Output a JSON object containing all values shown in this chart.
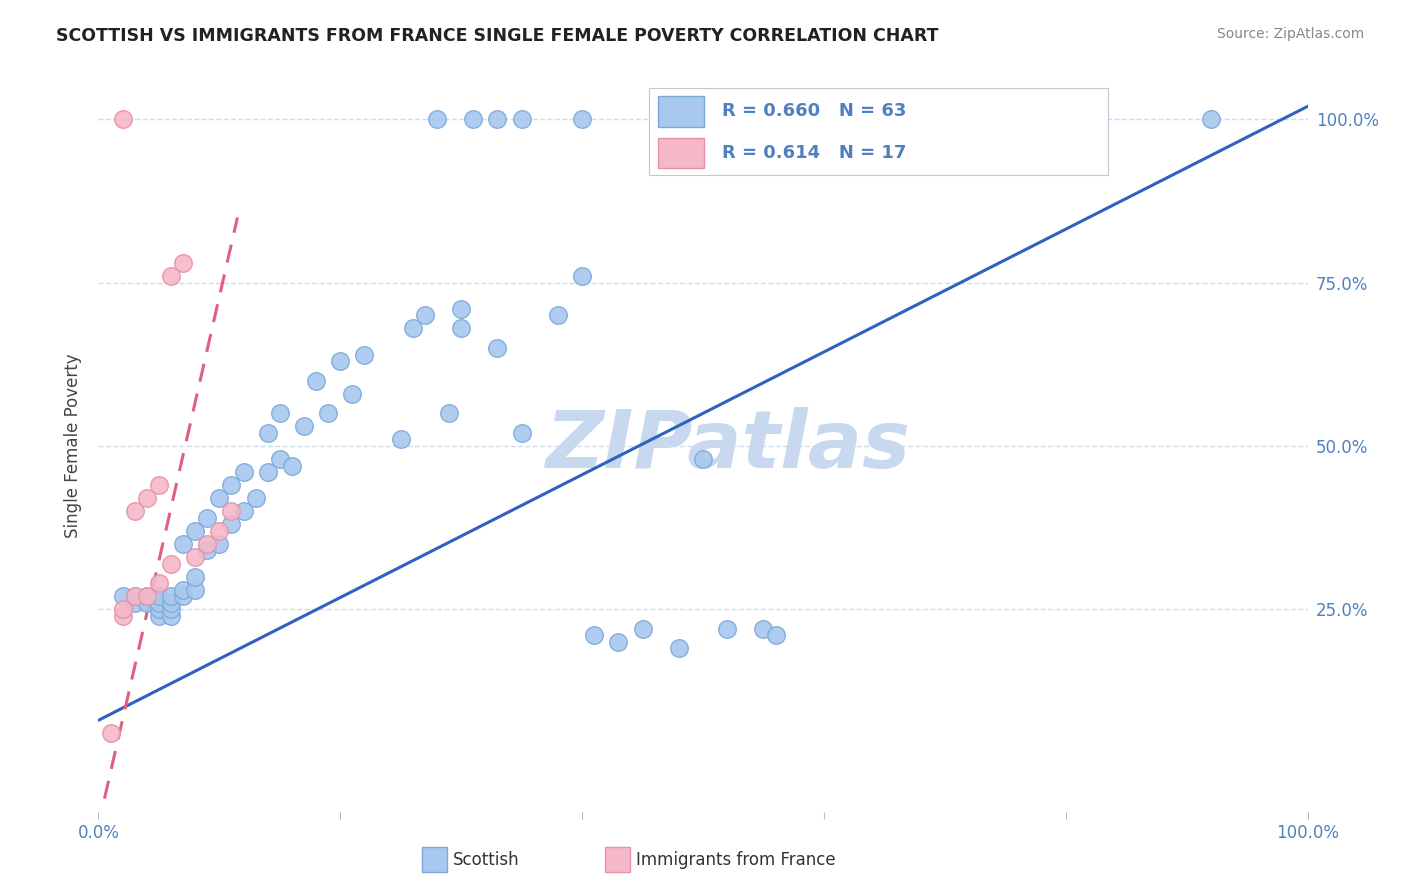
{
  "title": "SCOTTISH VS IMMIGRANTS FROM FRANCE SINGLE FEMALE POVERTY CORRELATION CHART",
  "source": "Source: ZipAtlas.com",
  "ylabel": "Single Female Poverty",
  "blue_color": "#A8C8F0",
  "blue_edge_color": "#7AAAD8",
  "pink_color": "#F4B8C8",
  "pink_edge_color": "#E890A8",
  "blue_line_color": "#3060C0",
  "pink_line_color": "#E06080",
  "grid_color": "#C8D8E8",
  "watermark_color": "#C8D8EE",
  "tick_color": "#5080C0",
  "R_blue": 0.66,
  "N_blue": 63,
  "R_pink": 0.614,
  "N_pink": 17,
  "scottish_x": [
    0.02,
    0.03,
    0.03,
    0.04,
    0.04,
    0.05,
    0.05,
    0.05,
    0.05,
    0.06,
    0.06,
    0.06,
    0.06,
    0.07,
    0.07,
    0.07,
    0.08,
    0.08,
    0.08,
    0.09,
    0.09,
    0.1,
    0.1,
    0.11,
    0.11,
    0.12,
    0.12,
    0.13,
    0.14,
    0.14,
    0.15,
    0.15,
    0.16,
    0.17,
    0.18,
    0.19,
    0.2,
    0.21,
    0.22,
    0.25,
    0.26,
    0.27,
    0.29,
    0.3,
    0.3,
    0.33,
    0.35,
    0.38,
    0.4,
    0.41,
    0.43,
    0.45,
    0.48,
    0.5,
    0.52,
    0.55,
    0.56,
    0.28,
    0.31,
    0.33,
    0.35,
    0.4,
    0.92
  ],
  "scottish_y": [
    0.27,
    0.26,
    0.27,
    0.26,
    0.27,
    0.24,
    0.25,
    0.26,
    0.27,
    0.24,
    0.25,
    0.26,
    0.27,
    0.27,
    0.28,
    0.35,
    0.28,
    0.3,
    0.37,
    0.34,
    0.39,
    0.35,
    0.42,
    0.38,
    0.44,
    0.4,
    0.46,
    0.42,
    0.46,
    0.52,
    0.48,
    0.55,
    0.47,
    0.53,
    0.6,
    0.55,
    0.63,
    0.58,
    0.64,
    0.51,
    0.68,
    0.7,
    0.55,
    0.68,
    0.71,
    0.65,
    0.52,
    0.7,
    0.76,
    0.21,
    0.2,
    0.22,
    0.19,
    0.48,
    0.22,
    0.22,
    0.21,
    1.0,
    1.0,
    1.0,
    1.0,
    1.0,
    1.0
  ],
  "france_x": [
    0.01,
    0.02,
    0.02,
    0.03,
    0.03,
    0.04,
    0.04,
    0.05,
    0.05,
    0.06,
    0.06,
    0.07,
    0.08,
    0.09,
    0.1,
    0.11,
    0.02
  ],
  "france_y": [
    0.06,
    0.24,
    0.25,
    0.27,
    0.4,
    0.27,
    0.42,
    0.29,
    0.44,
    0.32,
    0.76,
    0.78,
    0.33,
    0.35,
    0.37,
    0.4,
    1.0
  ],
  "blue_line_x0": 0.0,
  "blue_line_y0": 0.08,
  "blue_line_x1": 1.0,
  "blue_line_y1": 1.02,
  "pink_line_x0": 0.005,
  "pink_line_y0": -0.04,
  "pink_line_x1": 0.115,
  "pink_line_y1": 0.85,
  "x_min": 0.0,
  "x_max": 1.0,
  "y_min": -0.06,
  "y_max": 1.06,
  "legend_R_label": "R = ",
  "legend_N_label": "N = "
}
